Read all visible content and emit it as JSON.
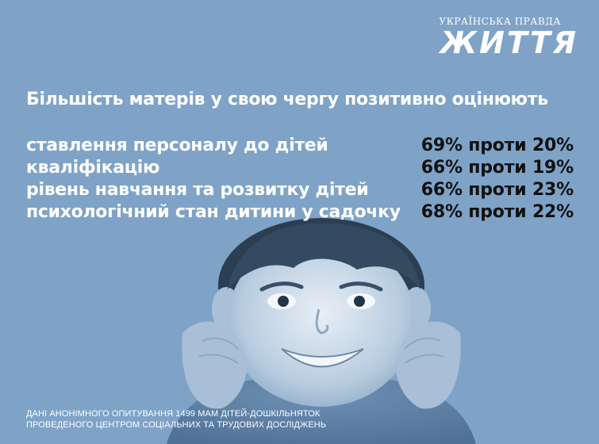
{
  "brand": {
    "top": "УКРАЇНСЬКА ПРАВДА",
    "main": "ЖИТТЯ"
  },
  "headline": "Більшість матерів у свою чергу позитивно оцінюють",
  "rows": [
    {
      "label": "ставлення персоналу до дітей",
      "value": "69% проти 20%"
    },
    {
      "label": "кваліфікацію",
      "value": "66% проти 19%"
    },
    {
      "label": "рівень навчання та розвитку дітей",
      "value": "66% проти 23%"
    },
    {
      "label": "психологічний стан дитини у садочку",
      "value": "68% проти 22%"
    }
  ],
  "footnote": {
    "line1": "Дані анонімного опитування 1499 мам дітей-дошкільняток",
    "line2": "проведеного Центром соціальних та трудових досліджень"
  },
  "colors": {
    "background": "#7ea3c7",
    "text_light": "#ffffff",
    "text_dark": "#111111"
  },
  "icons": {
    "photo": "smiling-boy-photo"
  }
}
